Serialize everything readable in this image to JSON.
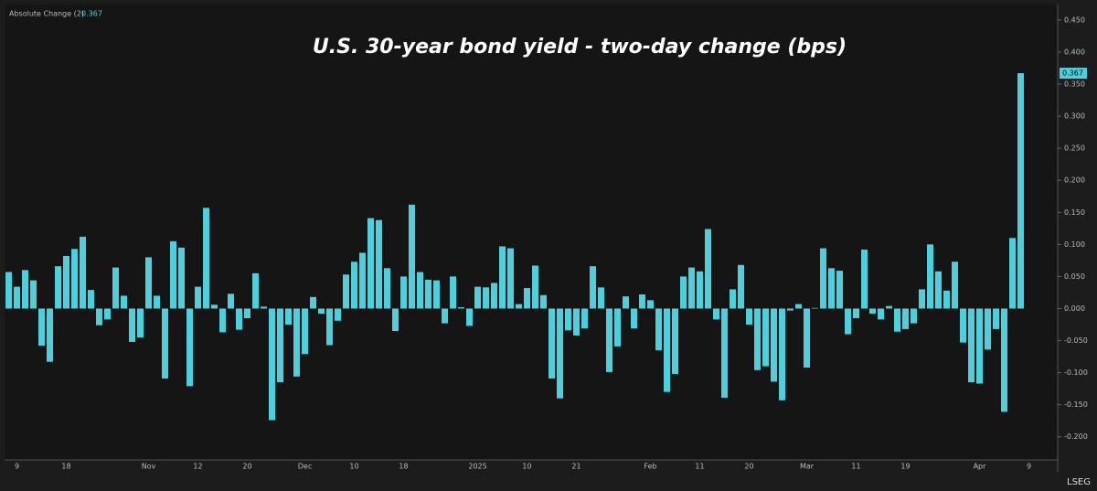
{
  "chart_data": {
    "type": "bar",
    "title": "U.S. 30-year bond yield - two-day change (bps)",
    "source": "LSEG",
    "categories": [
      null,
      "9",
      null,
      null,
      null,
      null,
      null,
      "18",
      null,
      null,
      null,
      null,
      null,
      null,
      null,
      null,
      null,
      "Nov",
      null,
      null,
      null,
      null,
      null,
      "12",
      null,
      null,
      null,
      null,
      null,
      "20",
      null,
      null,
      null,
      null,
      null,
      null,
      "Dec",
      null,
      null,
      null,
      null,
      null,
      "10",
      null,
      null,
      null,
      null,
      null,
      "18",
      null,
      null,
      null,
      null,
      null,
      null,
      null,
      null,
      "2025",
      null,
      null,
      null,
      null,
      null,
      "10",
      null,
      null,
      null,
      null,
      null,
      "21",
      null,
      null,
      null,
      null,
      null,
      null,
      null,
      null,
      "Feb",
      null,
      null,
      null,
      null,
      null,
      "11",
      null,
      null,
      null,
      null,
      null,
      "20",
      null,
      null,
      null,
      null,
      null,
      null,
      "Mar",
      null,
      null,
      null,
      null,
      null,
      "11",
      null,
      null,
      null,
      null,
      null,
      "19",
      null,
      null,
      null,
      null,
      null,
      null,
      null,
      null,
      "Apr",
      null,
      null,
      null,
      null,
      null,
      "9"
    ],
    "series": [
      {
        "name": "Absolute Change (2)",
        "color": "#4fcfdc",
        "values": [
          0.057,
          0.034,
          0.06,
          0.044,
          -0.058,
          -0.083,
          0.066,
          0.082,
          0.093,
          0.112,
          0.029,
          -0.026,
          -0.017,
          0.064,
          0.02,
          -0.052,
          -0.045,
          0.08,
          0.02,
          -0.109,
          0.105,
          0.095,
          -0.121,
          0.034,
          0.157,
          0.006,
          -0.037,
          0.023,
          -0.033,
          -0.015,
          0.055,
          0.003,
          -0.174,
          -0.115,
          -0.025,
          -0.106,
          -0.071,
          0.018,
          -0.008,
          -0.057,
          -0.019,
          0.053,
          0.073,
          0.087,
          0.141,
          0.138,
          0.063,
          -0.035,
          0.05,
          0.162,
          0.057,
          0.045,
          0.044,
          -0.023,
          0.05,
          0.002,
          -0.027,
          0.034,
          0.033,
          0.04,
          0.097,
          0.094,
          0.007,
          0.032,
          0.067,
          0.021,
          -0.109,
          -0.14,
          -0.034,
          -0.042,
          -0.031,
          0.066,
          0.033,
          -0.099,
          -0.059,
          0.019,
          -0.031,
          0.022,
          0.013,
          -0.065,
          -0.13,
          -0.102,
          0.05,
          0.064,
          0.058,
          0.124,
          -0.017,
          -0.139,
          0.03,
          0.068,
          -0.025,
          -0.096,
          -0.09,
          -0.114,
          -0.143,
          -0.003,
          0.007,
          -0.092,
          0.001,
          0.094,
          0.063,
          0.059,
          -0.04,
          -0.015,
          0.092,
          -0.008,
          -0.017,
          0.004,
          -0.036,
          -0.032,
          -0.023,
          0.03,
          0.1,
          0.058,
          0.028,
          0.073,
          -0.053,
          -0.115,
          -0.117,
          -0.064,
          -0.032,
          -0.161,
          0.11,
          0.367,
          null
        ]
      }
    ],
    "ylim": [
      -0.236,
      0.474
    ],
    "yticks": [
      {
        "value": 0.45,
        "label": "0.450"
      },
      {
        "value": 0.4,
        "label": "0.400"
      },
      {
        "value": 0.35,
        "label": "0.350"
      },
      {
        "value": 0.3,
        "label": "0.300"
      },
      {
        "value": 0.25,
        "label": "0.250"
      },
      {
        "value": 0.2,
        "label": "0.200"
      },
      {
        "value": 0.15,
        "label": "0.150"
      },
      {
        "value": 0.1,
        "label": "0.100"
      },
      {
        "value": 0.05,
        "label": "0.050"
      },
      {
        "value": 0,
        "label": "0.000"
      },
      {
        "value": -0.05,
        "label": "-0.050"
      },
      {
        "value": -0.1,
        "label": "-0.100"
      },
      {
        "value": -0.15,
        "label": "-0.150"
      },
      {
        "value": -0.2,
        "label": "-0.200"
      }
    ],
    "grid": false
  }
}
